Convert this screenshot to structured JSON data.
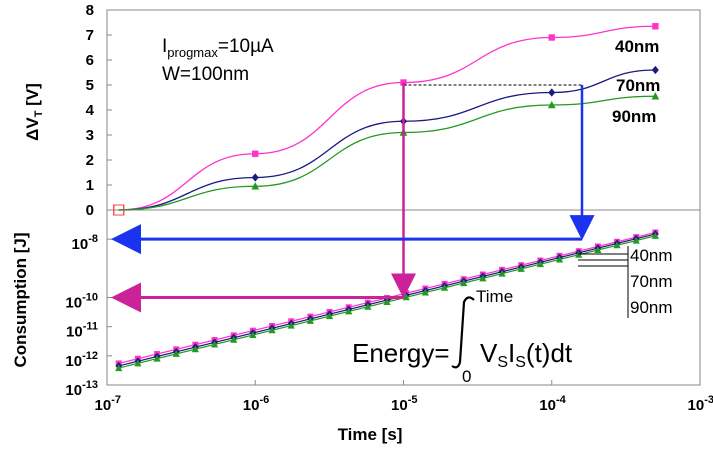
{
  "chart_data": [
    {
      "type": "line",
      "ylabel": "ΔVT [V]",
      "xscale": "log",
      "xlim": [
        1e-07,
        0.001
      ],
      "ylim": [
        0,
        8
      ],
      "yticks": [
        "0",
        "1",
        "2",
        "3",
        "4",
        "5",
        "6",
        "7",
        "8"
      ],
      "annotation": {
        "line1": "Iprogmax=10µA",
        "line2": "W=100nm"
      },
      "series_labels": [
        "40nm",
        "70nm",
        "90nm"
      ],
      "series": [
        {
          "name": "40nm",
          "color": "#ff33cc",
          "marker": "square",
          "x": [
            1.2e-07,
            1e-06,
            1e-05,
            0.0001,
            0.0005
          ],
          "y": [
            0,
            2.25,
            5.1,
            6.9,
            7.35
          ]
        },
        {
          "name": "70nm",
          "color": "#1a1a80",
          "marker": "diamond",
          "x": [
            1.2e-07,
            1e-06,
            1e-05,
            0.0001,
            0.0005
          ],
          "y": [
            0,
            1.3,
            3.55,
            4.7,
            5.6
          ]
        },
        {
          "name": "90nm",
          "color": "#229922",
          "marker": "triangle",
          "x": [
            1.2e-07,
            1e-06,
            1e-05,
            0.0001,
            0.0005
          ],
          "y": [
            0,
            0.95,
            3.1,
            4.2,
            4.55
          ]
        }
      ]
    },
    {
      "type": "line",
      "ylabel": "Consumption [J]",
      "xlabel": "Time [s]",
      "xscale": "log",
      "yscale": "log",
      "xlim": [
        1e-07,
        0.001
      ],
      "ylim": [
        1e-13,
        1e-07
      ],
      "xticks": [
        "10-7",
        "10-6",
        "10-5",
        "10-4",
        "10-3"
      ],
      "yticks": [
        "10-13",
        "10-12",
        "10-11",
        "10-10",
        "10-8"
      ],
      "legend": [
        "40nm",
        "70nm",
        "90nm"
      ],
      "equation": {
        "lhs": "Energy=",
        "lower": "0",
        "upper": "Time",
        "integrand_v": "V",
        "integrand_sub1": "S",
        "integrand_i": "I",
        "integrand_sub2": "S",
        "integrand_tail": "(t)dt"
      },
      "series": [
        {
          "name": "40nm",
          "color": "#ff33cc",
          "marker": "square",
          "x": [
            1.2e-07,
            0.0005
          ],
          "y": [
            5.5e-13,
            1.7e-08
          ]
        },
        {
          "name": "70nm",
          "color": "#1a1a80",
          "marker": "diamond",
          "x": [
            1.2e-07,
            0.0005
          ],
          "y": [
            4.5e-13,
            1.5e-08
          ]
        },
        {
          "name": "90nm",
          "color": "#229922",
          "marker": "triangle",
          "x": [
            1.2e-07,
            0.0005
          ],
          "y": [
            3.8e-13,
            1.3e-08
          ]
        }
      ]
    }
  ],
  "arrows": {
    "pink_time": 1e-05,
    "pink_target_vt": 5.1,
    "blue_time": 0.00016,
    "blue_target_vt": 5.0,
    "pink_energy": 1e-10,
    "blue_energy": 1e-08
  }
}
